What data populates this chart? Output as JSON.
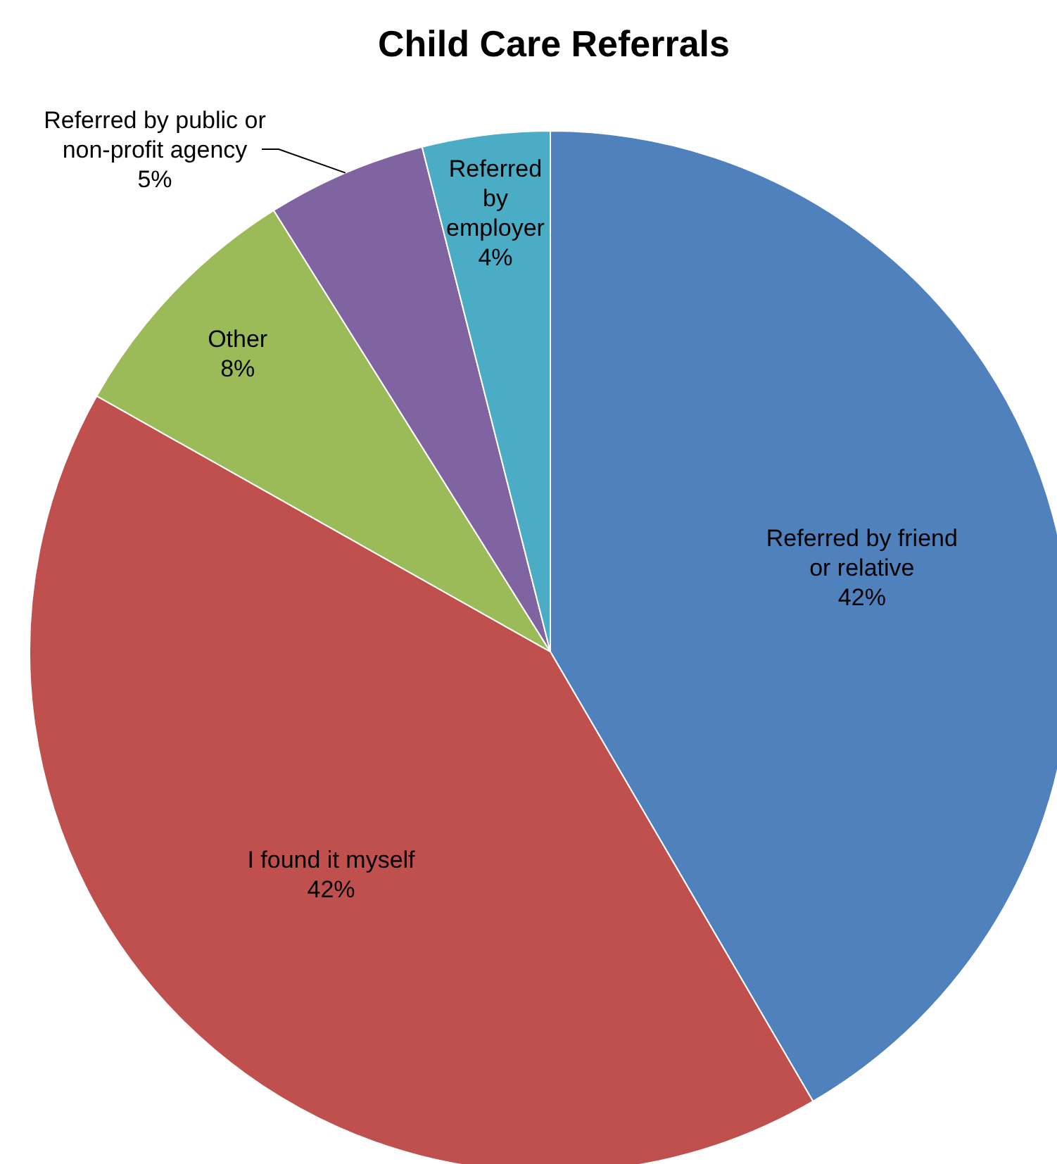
{
  "chart_data": {
    "type": "pie",
    "title": "Child Care Referrals",
    "categories": [
      "Referred by friend or relative",
      "I found it myself",
      "Other",
      "Referred by public or non-profit agency",
      "Referred by employer"
    ],
    "values": [
      42,
      42,
      8,
      5,
      4
    ],
    "colors": [
      "#4f81bd",
      "#c0504d",
      "#9bbb59",
      "#8064a2",
      "#4bacc6"
    ],
    "value_labels": [
      "42%",
      "42%",
      "8%",
      "5%",
      "4%"
    ]
  }
}
